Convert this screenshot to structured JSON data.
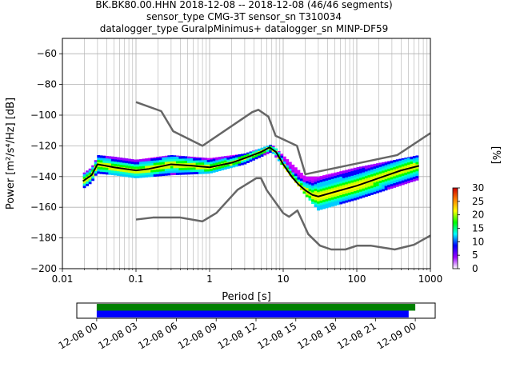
{
  "title_lines": [
    "BK.BK80.00.HHN   2018-12-08 -- 2018-12-08  (46/46 segments)",
    "sensor_type CMG-3T sensor_sn T310034",
    "datalogger_type GuralpMinimus+ datalogger_sn MINP-DF59"
  ],
  "chart_data": [
    {
      "type": "heatmap",
      "title": "",
      "xlabel": "Period [s]",
      "ylabel": "Power [m²/s⁴/Hz] [dB]",
      "xscale": "log",
      "xlim": [
        0.01,
        1000
      ],
      "ylim": [
        -200,
        -50
      ],
      "x_ticks": [
        0.01,
        0.1,
        1,
        10,
        100,
        1000
      ],
      "x_tick_labels": [
        "0.01",
        "0.1",
        "1",
        "10",
        "100",
        "1000"
      ],
      "y_ticks": [
        -200,
        -180,
        -160,
        -140,
        -120,
        -100,
        -80,
        -60
      ],
      "y_tick_labels": [
        "−200",
        "−180",
        "−160",
        "−140",
        "−120",
        "−100",
        "−80",
        "−60"
      ],
      "grid": true,
      "colorbar": {
        "label": "[%]",
        "range": [
          0,
          30
        ],
        "ticks": [
          0,
          5,
          10,
          15,
          20,
          25,
          30
        ],
        "tick_labels": [
          "0",
          "5",
          "10",
          "15",
          "20",
          "25",
          "30"
        ],
        "colors": [
          "#ffffff",
          "#9900ff",
          "#0000ff",
          "#00ffff",
          "#00ff00",
          "#ffff00",
          "#ff8000",
          "#cc0000"
        ]
      },
      "series": [
        {
          "name": "",
          "role": "mode",
          "color": "#000000",
          "x": [
            0.019,
            0.025,
            0.03,
            0.05,
            0.1,
            0.15,
            0.3,
            0.6,
            1,
            2,
            3,
            5,
            6.5,
            8,
            10,
            13,
            16,
            20,
            25,
            30,
            50,
            100,
            200,
            400,
            700
          ],
          "y": [
            -143,
            -139,
            -132,
            -134,
            -136,
            -135,
            -132,
            -133,
            -134,
            -131,
            -128,
            -124,
            -121,
            -124,
            -132,
            -140,
            -145,
            -149,
            -152,
            -153,
            -150,
            -146,
            -141,
            -136,
            -133
          ]
        },
        {
          "name": "",
          "role": "NHNM",
          "color": "#666666",
          "x": [
            0.1,
            0.22,
            0.32,
            0.8,
            3.8,
            4.6,
            6.3,
            7.9,
            15.4,
            20,
            354.8,
            10000
          ],
          "y": [
            -91.5,
            -97.4,
            -110.5,
            -120,
            -98,
            -96.5,
            -101,
            -113.5,
            -120,
            -138.5,
            -126,
            -80
          ]
        },
        {
          "name": "",
          "role": "NLNM",
          "color": "#666666",
          "x": [
            0.1,
            0.17,
            0.4,
            0.8,
            1.24,
            2.4,
            4.3,
            5,
            6,
            10,
            12,
            15.6,
            21.9,
            31.6,
            45,
            70,
            101,
            154,
            328,
            600,
            10000
          ],
          "y": [
            -168,
            -166.7,
            -166.7,
            -169.2,
            -163.7,
            -148.6,
            -141.1,
            -141.1,
            -149,
            -163.8,
            -166.2,
            -162.1,
            -177.5,
            -185,
            -187.5,
            -187.5,
            -185,
            -185,
            -187.5,
            -184.4,
            -151.5
          ]
        }
      ],
      "heat_cells": [
        {
          "x": 0.03,
          "ylow": -138,
          "yhigh": -126
        },
        {
          "x": 0.05,
          "ylow": -139,
          "yhigh": -127
        },
        {
          "x": 0.1,
          "ylow": -141,
          "yhigh": -129
        },
        {
          "x": 0.3,
          "ylow": -139,
          "yhigh": -126
        },
        {
          "x": 1,
          "ylow": -138,
          "yhigh": -128
        },
        {
          "x": 3,
          "ylow": -132,
          "yhigh": -125
        },
        {
          "x": 7,
          "ylow": -124,
          "yhigh": -119
        },
        {
          "x": 20,
          "ylow": -152,
          "yhigh": -140
        },
        {
          "x": 30,
          "ylow": -162,
          "yhigh": -140
        },
        {
          "x": 100,
          "ylow": -155,
          "yhigh": -134
        },
        {
          "x": 700,
          "ylow": -142,
          "yhigh": -126
        }
      ]
    },
    {
      "type": "timeline",
      "tick_labels": [
        "12-08 00",
        "12-08 03",
        "12-08 06",
        "12-08 09",
        "12-08 12",
        "12-08 15",
        "12-08 18",
        "12-08 21",
        "12-09 00"
      ],
      "xlim": [
        "12-07 22:30",
        "12-09 01:30"
      ],
      "bars": [
        {
          "color": "#008000",
          "start": "12-08 00:00",
          "end": "12-09 00:00"
        },
        {
          "color": "#0000ff",
          "start": "12-08 00:00",
          "end": "12-08 23:30"
        }
      ]
    }
  ]
}
